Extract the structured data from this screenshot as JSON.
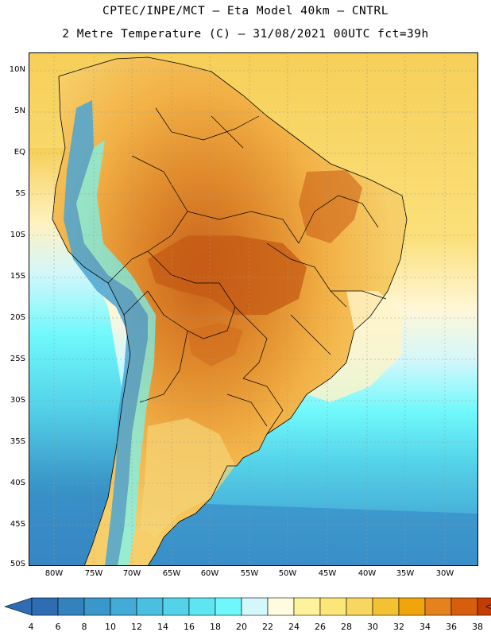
{
  "title_line1": "CPTEC/INPE/MCT –  Eta Model 40km – CNTRL",
  "title_line2": "2 Metre Temperature (C) – 31/08/2021 00UTC fct=39h",
  "lat_labels": [
    "10N",
    "5N",
    "EQ",
    "5S",
    "10S",
    "15S",
    "20S",
    "25S",
    "30S",
    "35S",
    "40S",
    "45S",
    "50S"
  ],
  "lon_labels": [
    "80W",
    "75W",
    "70W",
    "65W",
    "60W",
    "55W",
    "50W",
    "45W",
    "40W",
    "35W",
    "30W"
  ],
  "colorbar": {
    "labels": [
      "4",
      "6",
      "8",
      "10",
      "12",
      "14",
      "16",
      "18",
      "20",
      "22",
      "24",
      "26",
      "28",
      "30",
      "32",
      "34",
      "36",
      "38"
    ],
    "colors": [
      "#2e6db1",
      "#3382bd",
      "#3a97c9",
      "#43abd6",
      "#4bbfe0",
      "#54d2e9",
      "#5fe5f1",
      "#6ff8fb",
      "#d3f7fb",
      "#fffbe0",
      "#fff29c",
      "#fde678",
      "#f8d761",
      "#f2c232",
      "#f0a50b",
      "#e5821e",
      "#d85e0f",
      "#c23d04"
    ],
    "under_color": "#2e6db1",
    "over_color": "#b8431a"
  },
  "map_colors": {
    "ocean_cold": "#3a8fc8",
    "ocean_cool": "#54d2e9",
    "ocean_mid": "#6ff8fb",
    "ocean_warm": "#fbe07a",
    "ocean_tropical": "#f6cf58",
    "land_hot": "#d4701e",
    "land_warm": "#f0a74a",
    "land_mild": "#f5c24e",
    "andes_cold": "#4aa5d6",
    "boundary": "#000000",
    "grid": "#999999"
  }
}
